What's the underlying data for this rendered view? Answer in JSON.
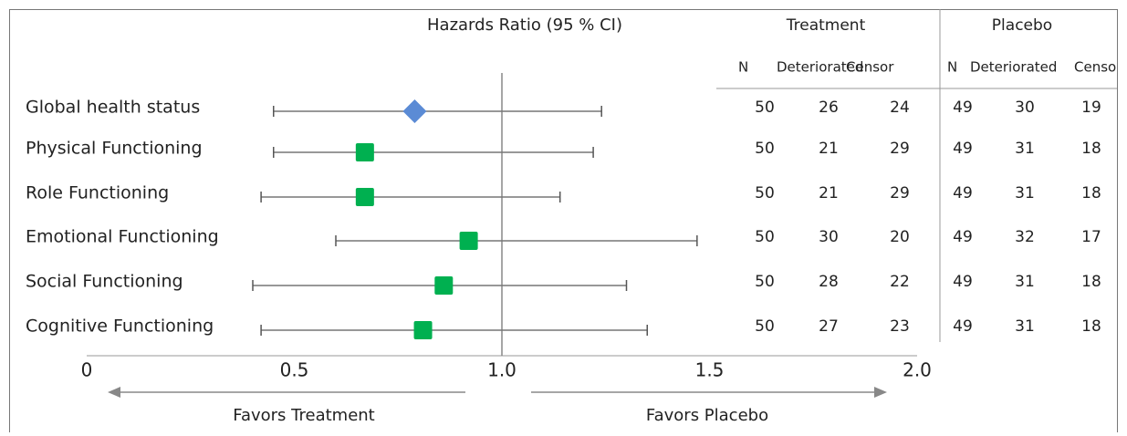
{
  "chart_data": {
    "type": "forest",
    "title": "Hazards Ratio (95 % CI)",
    "categories": [
      "Global health status",
      "Physical Functioning",
      "Role Functioning",
      "Emotional Functioning",
      "Social Functioning",
      "Cognitive Functioning"
    ],
    "series": [
      {
        "values": [
          0.79,
          0.67,
          0.67,
          0.92,
          0.86,
          0.81
        ],
        "ci_low": [
          0.45,
          0.45,
          0.42,
          0.6,
          0.4,
          0.42
        ],
        "ci_high": [
          1.24,
          1.22,
          1.14,
          1.47,
          1.3,
          1.35
        ],
        "colors": [
          "#5b8bd5",
          "#00b050",
          "#00b050",
          "#00b050",
          "#00b050",
          "#00b050"
        ],
        "markers": [
          "diamond",
          "square",
          "square",
          "square",
          "square",
          "square"
        ]
      }
    ],
    "xlim": [
      0,
      2
    ],
    "xticks": [
      0,
      0.5,
      {
        "value": 1,
        "label": "1.0"
      },
      1.5,
      {
        "value": 2,
        "label": "2.0"
      }
    ],
    "reference_line": 1,
    "annotations": [
      "Favors Treatment",
      "Favors Placebo"
    ],
    "table": {
      "groups": [
        "Treatment",
        "Placebo"
      ],
      "columns": [
        "N",
        "Deteriorated",
        "Censor"
      ],
      "rows": [
        [
          50,
          26,
          24,
          49,
          30,
          19
        ],
        [
          50,
          21,
          29,
          49,
          31,
          18
        ],
        [
          50,
          21,
          29,
          49,
          31,
          18
        ],
        [
          50,
          30,
          20,
          49,
          32,
          17
        ],
        [
          50,
          28,
          22,
          49,
          31,
          18
        ],
        [
          50,
          27,
          23,
          49,
          31,
          18
        ]
      ]
    }
  }
}
